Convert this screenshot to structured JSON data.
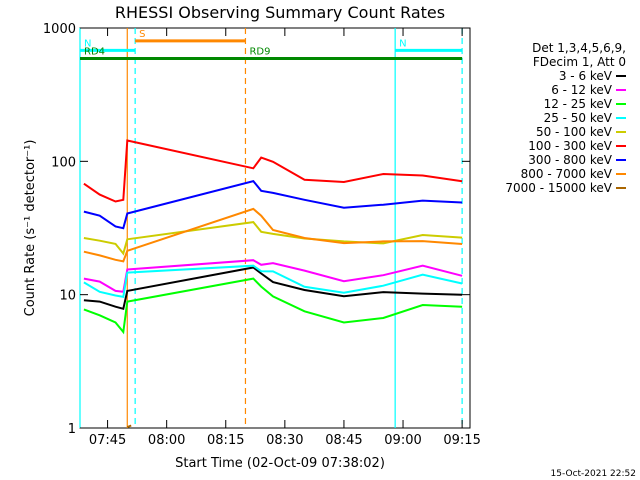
{
  "chart_data": {
    "type": "line",
    "title": "RHESSI Observing Summary Count Rates",
    "xlabel": "Start Time (02-Oct-09 07:38:02)",
    "ylabel": "Count Rate (s⁻¹ detector⁻¹)",
    "yscale": "log",
    "ylim": [
      1,
      1000
    ],
    "xlim": [
      "07:38",
      "09:17"
    ],
    "x_ticks": [
      "07:45",
      "08:00",
      "08:15",
      "08:30",
      "08:45",
      "09:00",
      "09:15"
    ],
    "y_ticks": [
      "1",
      "10",
      "100",
      "1000"
    ],
    "legend_position": "right",
    "legend_header": [
      "Det 1,3,4,5,6,9,",
      "FDecim 1, Att 0"
    ],
    "series": [
      {
        "name": "3 - 6 keV",
        "color": "#000000",
        "x": [
          "07:39",
          "07:43",
          "07:47",
          "07:49",
          "07:50",
          "08:22",
          "08:24",
          "08:27",
          "08:35",
          "08:45",
          "08:55",
          "09:05",
          "09:15"
        ],
        "y": [
          9.5,
          9.0,
          8.0,
          7.5,
          11,
          16,
          14,
          13,
          11,
          9.6,
          10,
          10.5,
          10
        ]
      },
      {
        "name": "6 - 12 keV",
        "color": "#ff00ff",
        "x": [
          "07:39",
          "07:43",
          "07:47",
          "07:49",
          "07:50",
          "08:22",
          "08:24",
          "08:27",
          "08:35",
          "08:45",
          "08:55",
          "09:05",
          "09:15"
        ],
        "y": [
          13,
          12,
          11,
          10.5,
          15,
          19,
          17,
          17,
          14.5,
          13,
          14,
          16,
          14.5
        ]
      },
      {
        "name": "12 - 25 keV",
        "color": "#00ff00",
        "x": [
          "07:39",
          "07:43",
          "07:47",
          "07:49",
          "07:50",
          "08:22",
          "08:24",
          "08:27",
          "08:35",
          "08:45",
          "08:55",
          "09:05",
          "09:15"
        ],
        "y": [
          8,
          7,
          6,
          5.5,
          9,
          13,
          11,
          10,
          7.5,
          6,
          7,
          8.5,
          8
        ]
      },
      {
        "name": "25 - 50 keV",
        "color": "#00ffff",
        "x": [
          "07:39",
          "07:43",
          "07:47",
          "07:49",
          "07:50",
          "08:22",
          "08:24",
          "08:27",
          "08:35",
          "08:45",
          "08:55",
          "09:05",
          "09:15"
        ],
        "y": [
          12,
          11,
          10,
          9.5,
          14,
          17,
          15,
          14.5,
          12,
          10.5,
          11.5,
          13.5,
          12.5
        ]
      },
      {
        "name": "50 - 100 keV",
        "color": "#cccc00",
        "x": [
          "07:39",
          "07:43",
          "07:47",
          "07:49",
          "07:50",
          "08:22",
          "08:24",
          "08:27",
          "08:35",
          "08:45",
          "08:55",
          "09:05",
          "09:15"
        ],
        "y": [
          27,
          25,
          23,
          21,
          26,
          34,
          31,
          29,
          26,
          24,
          25,
          28,
          26
        ]
      },
      {
        "name": "100 - 300 keV",
        "color": "#ff0000",
        "x": [
          "07:39",
          "07:43",
          "07:47",
          "07:49",
          "07:50",
          "08:22",
          "08:24",
          "08:27",
          "08:35",
          "08:45",
          "08:55",
          "09:05",
          "09:15"
        ],
        "y": [
          65,
          58,
          50,
          50,
          150,
          90,
          105,
          95,
          75,
          70,
          78,
          82,
          72
        ]
      },
      {
        "name": "300 - 800 keV",
        "color": "#0000ff",
        "x": [
          "07:39",
          "07:43",
          "07:47",
          "07:49",
          "07:50",
          "08:22",
          "08:24",
          "08:27",
          "08:35",
          "08:45",
          "08:55",
          "09:05",
          "09:15"
        ],
        "y": [
          42,
          38,
          34,
          32,
          40,
          68,
          62,
          58,
          50,
          47,
          48,
          50,
          47
        ]
      },
      {
        "name": "800 - 7000 keV",
        "color": "#ff8800",
        "x": [
          "07:39",
          "07:43",
          "07:47",
          "07:49",
          "07:50",
          "08:22",
          "08:24",
          "08:27",
          "08:35",
          "08:45",
          "08:55",
          "09:05",
          "09:15"
        ],
        "y": [
          22,
          20,
          18,
          17,
          22,
          44,
          38,
          32,
          27,
          24,
          24,
          26,
          24
        ]
      },
      {
        "name": "7000 - 15000 keV",
        "color": "#aa6600",
        "x": [
          "07:50",
          "07:51"
        ],
        "y": [
          1.0,
          1.0
        ]
      }
    ],
    "annotations": [
      {
        "label": "S",
        "color": "#ff8800",
        "x_start": "07:52",
        "x_end": "08:20",
        "y_level": 800
      },
      {
        "label": "N",
        "color": "#00ffff",
        "x_start": "07:38",
        "x_end": "07:52",
        "y_level": 680
      },
      {
        "label": "N",
        "color": "#00ffff",
        "x_start": "08:58",
        "x_end": "09:15",
        "y_level": 680
      },
      {
        "label": "RD9",
        "color": "#008800",
        "x_start": "08:20",
        "x_end": "09:15",
        "y_level": 590
      },
      {
        "label": "RD4",
        "color": "#008800",
        "x_start": "07:38",
        "x_end": "08:20",
        "y_level": 590
      }
    ],
    "vertical_markers": [
      {
        "x": "07:38",
        "color": "#00ffff",
        "style": "solid"
      },
      {
        "x": "07:52",
        "color": "#00ffff",
        "style": "dashed"
      },
      {
        "x": "07:50",
        "color": "#ff8800",
        "style": "solid"
      },
      {
        "x": "08:20",
        "color": "#ff8800",
        "style": "dashed"
      },
      {
        "x": "08:58",
        "color": "#00ffff",
        "style": "solid"
      },
      {
        "x": "09:15",
        "color": "#00ffff",
        "style": "dashed"
      }
    ]
  },
  "footer": {
    "timestamp": "15-Oct-2021 22:52"
  }
}
